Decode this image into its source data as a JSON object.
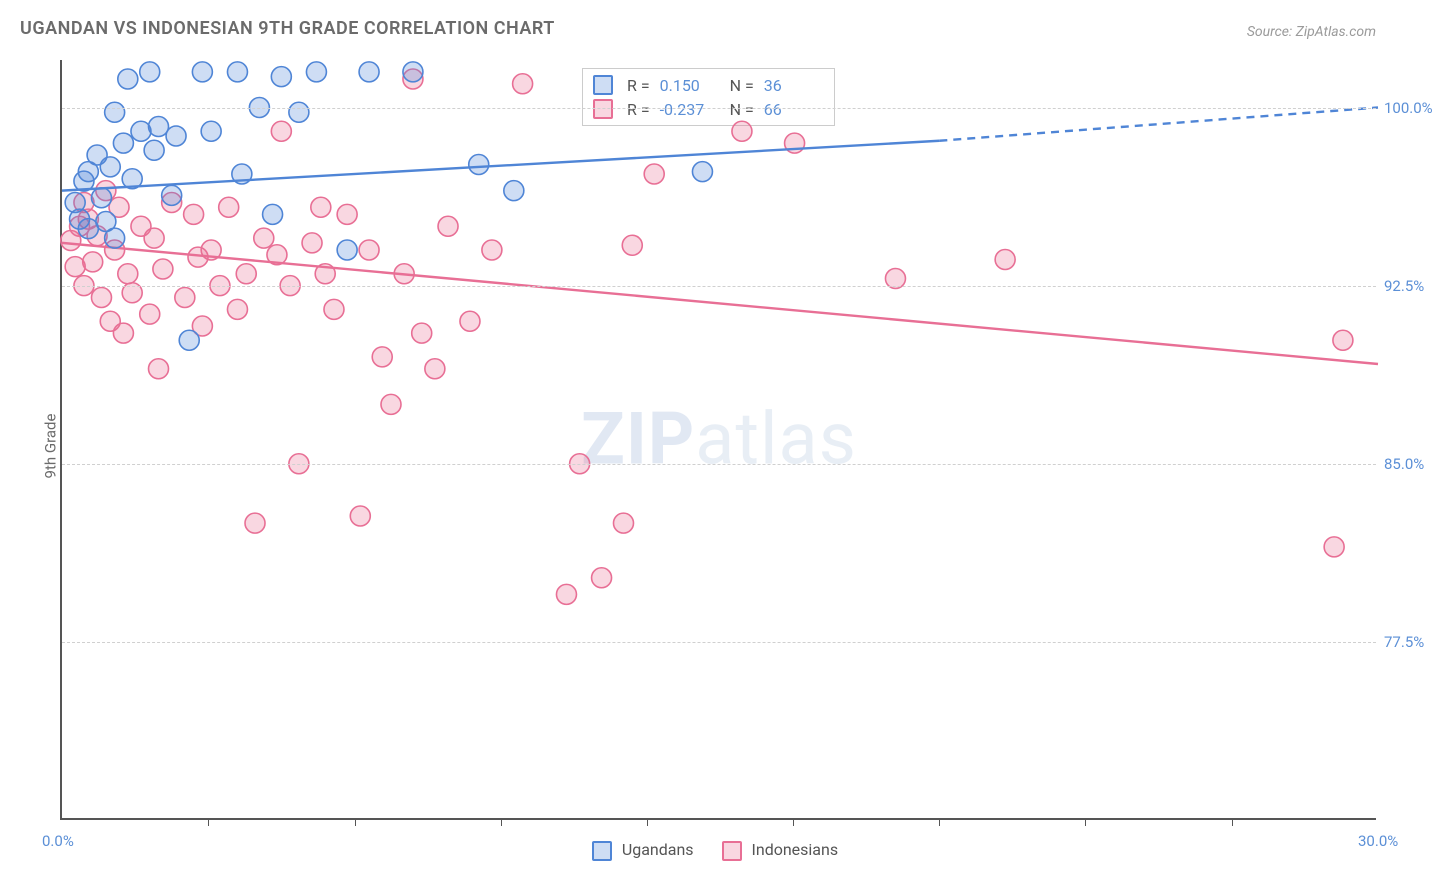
{
  "title": "UGANDAN VS INDONESIAN 9TH GRADE CORRELATION CHART",
  "source_label": "Source: ZipAtlas.com",
  "ylabel": "9th Grade",
  "watermark": {
    "main": "ZIP",
    "sub": "atlas"
  },
  "chart": {
    "type": "scatter",
    "background_color": "#ffffff",
    "grid_color": "#d0d0d0",
    "axis_color": "#555555",
    "xlim": [
      0,
      30
    ],
    "ylim": [
      70,
      102
    ],
    "x_ticks_major": [
      0,
      30
    ],
    "x_ticks_minor": [
      3.33,
      6.67,
      10,
      13.33,
      16.67,
      20,
      23.33,
      26.67
    ],
    "x_tick_labels": [
      "0.0%",
      "30.0%"
    ],
    "y_ticks": [
      77.5,
      85.0,
      92.5,
      100.0
    ],
    "y_tick_labels": [
      "77.5%",
      "85.0%",
      "92.5%",
      "100.0%"
    ],
    "label_color": "#5b8fd6",
    "label_fontsize": 15,
    "title_fontsize": 18,
    "title_color": "#6b6b6b",
    "marker_radius": 10,
    "marker_fill_opacity": 0.28,
    "marker_stroke_width": 1.6,
    "line_width": 2.4
  },
  "series": {
    "ugandans": {
      "label": "Ugandans",
      "color": "#4f85d6",
      "fill": "#4f85d6",
      "R": "0.150",
      "N": "36",
      "trend": {
        "solid": [
          [
            0,
            96.5
          ],
          [
            20,
            98.6
          ]
        ],
        "dashed": [
          [
            20,
            98.6
          ],
          [
            30,
            100.0
          ]
        ]
      },
      "points": [
        [
          0.3,
          96.0
        ],
        [
          0.4,
          95.3
        ],
        [
          0.5,
          96.9
        ],
        [
          0.6,
          94.9
        ],
        [
          0.6,
          97.3
        ],
        [
          0.8,
          98.0
        ],
        [
          0.9,
          96.2
        ],
        [
          1.0,
          95.2
        ],
        [
          1.1,
          97.5
        ],
        [
          1.2,
          99.8
        ],
        [
          1.2,
          94.5
        ],
        [
          1.4,
          98.5
        ],
        [
          1.5,
          101.2
        ],
        [
          1.6,
          97.0
        ],
        [
          1.8,
          99.0
        ],
        [
          2.0,
          101.5
        ],
        [
          2.1,
          98.2
        ],
        [
          2.2,
          99.2
        ],
        [
          2.5,
          96.3
        ],
        [
          2.6,
          98.8
        ],
        [
          2.9,
          90.2
        ],
        [
          3.2,
          101.5
        ],
        [
          3.4,
          99.0
        ],
        [
          4.0,
          101.5
        ],
        [
          4.1,
          97.2
        ],
        [
          4.5,
          100.0
        ],
        [
          4.8,
          95.5
        ],
        [
          5.0,
          101.3
        ],
        [
          5.4,
          99.8
        ],
        [
          5.8,
          101.5
        ],
        [
          6.5,
          94.0
        ],
        [
          7.0,
          101.5
        ],
        [
          8.0,
          101.5
        ],
        [
          9.5,
          97.6
        ],
        [
          10.3,
          96.5
        ],
        [
          14.6,
          97.3
        ]
      ]
    },
    "indonesians": {
      "label": "Indonesians",
      "color": "#e86f95",
      "fill": "#e86f95",
      "R": "-0.237",
      "N": "66",
      "trend": {
        "solid": [
          [
            0,
            94.3
          ],
          [
            30,
            89.2
          ]
        ]
      },
      "points": [
        [
          0.2,
          94.4
        ],
        [
          0.3,
          93.3
        ],
        [
          0.4,
          95.0
        ],
        [
          0.5,
          96.0
        ],
        [
          0.5,
          92.5
        ],
        [
          0.6,
          95.3
        ],
        [
          0.7,
          93.5
        ],
        [
          0.8,
          94.6
        ],
        [
          0.9,
          92.0
        ],
        [
          1.0,
          96.5
        ],
        [
          1.1,
          91.0
        ],
        [
          1.2,
          94.0
        ],
        [
          1.3,
          95.8
        ],
        [
          1.4,
          90.5
        ],
        [
          1.5,
          93.0
        ],
        [
          1.6,
          92.2
        ],
        [
          1.8,
          95.0
        ],
        [
          2.0,
          91.3
        ],
        [
          2.1,
          94.5
        ],
        [
          2.2,
          89.0
        ],
        [
          2.3,
          93.2
        ],
        [
          2.5,
          96.0
        ],
        [
          2.8,
          92.0
        ],
        [
          3.0,
          95.5
        ],
        [
          3.2,
          90.8
        ],
        [
          3.4,
          94.0
        ],
        [
          3.6,
          92.5
        ],
        [
          3.8,
          95.8
        ],
        [
          4.0,
          91.5
        ],
        [
          4.2,
          93.0
        ],
        [
          4.4,
          82.5
        ],
        [
          4.6,
          94.5
        ],
        [
          5.0,
          99.0
        ],
        [
          5.2,
          92.5
        ],
        [
          5.4,
          85.0
        ],
        [
          5.7,
          94.3
        ],
        [
          6.0,
          93.0
        ],
        [
          6.2,
          91.5
        ],
        [
          6.5,
          95.5
        ],
        [
          6.8,
          82.8
        ],
        [
          7.0,
          94.0
        ],
        [
          7.3,
          89.5
        ],
        [
          7.5,
          87.5
        ],
        [
          7.8,
          93.0
        ],
        [
          8.0,
          101.2
        ],
        [
          8.2,
          90.5
        ],
        [
          8.5,
          89.0
        ],
        [
          8.8,
          95.0
        ],
        [
          9.3,
          91.0
        ],
        [
          9.8,
          94.0
        ],
        [
          10.5,
          101.0
        ],
        [
          11.5,
          79.5
        ],
        [
          11.8,
          85.0
        ],
        [
          12.3,
          80.2
        ],
        [
          12.8,
          82.5
        ],
        [
          13.0,
          94.2
        ],
        [
          13.5,
          97.2
        ],
        [
          15.5,
          99.0
        ],
        [
          16.7,
          98.5
        ],
        [
          19.0,
          92.8
        ],
        [
          21.5,
          93.6
        ],
        [
          29.0,
          81.5
        ],
        [
          29.2,
          90.2
        ],
        [
          4.9,
          93.8
        ],
        [
          5.9,
          95.8
        ],
        [
          3.1,
          93.7
        ]
      ]
    }
  },
  "inner_legend": {
    "r_label": "R =",
    "n_label": "N ="
  },
  "bottom_legend_order": [
    "ugandans",
    "indonesians"
  ]
}
